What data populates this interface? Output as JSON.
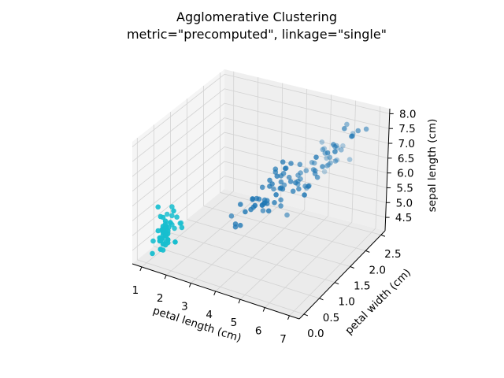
{
  "chart_data": {
    "type": "scatter",
    "projection": "3d",
    "title": [
      "Agglomerative Clustering",
      "metric=\"precomputed\", linkage=\"single\""
    ],
    "xlabel": "petal length (cm)",
    "ylabel": "petal width (cm)",
    "zlabel": "sepal length (cm)",
    "xlim": [
      0.62,
      7.4
    ],
    "ylim": [
      -0.15,
      2.63
    ],
    "zlim": [
      4.05,
      8.17
    ],
    "xticks": [
      "1",
      "2",
      "3",
      "4",
      "5",
      "6",
      "7"
    ],
    "yticks": [
      "0.0",
      "0.5",
      "1.0",
      "1.5",
      "2.0",
      "2.5"
    ],
    "zticks": [
      "4.5",
      "5.0",
      "5.5",
      "6.0",
      "6.5",
      "7.0",
      "7.5",
      "8.0"
    ],
    "grid": true,
    "legend": "none",
    "point_format": [
      "petal length (cm)",
      "petal width (cm)",
      "sepal length (cm)"
    ],
    "series": [
      {
        "color": "#17becf",
        "points": [
          [
            1.4,
            0.2,
            5.1
          ],
          [
            1.4,
            0.2,
            4.9
          ],
          [
            1.3,
            0.2,
            4.7
          ],
          [
            1.5,
            0.2,
            4.6
          ],
          [
            1.4,
            0.2,
            5.0
          ],
          [
            1.7,
            0.4,
            5.4
          ],
          [
            1.4,
            0.3,
            4.6
          ],
          [
            1.5,
            0.2,
            5.0
          ],
          [
            1.4,
            0.2,
            4.4
          ],
          [
            1.5,
            0.1,
            4.9
          ],
          [
            1.5,
            0.2,
            5.4
          ],
          [
            1.6,
            0.2,
            4.8
          ],
          [
            1.4,
            0.1,
            4.8
          ],
          [
            1.1,
            0.1,
            4.3
          ],
          [
            1.2,
            0.2,
            5.8
          ],
          [
            1.5,
            0.4,
            5.7
          ],
          [
            1.3,
            0.4,
            5.4
          ],
          [
            1.4,
            0.3,
            5.1
          ],
          [
            1.7,
            0.3,
            5.7
          ],
          [
            1.5,
            0.3,
            5.1
          ],
          [
            1.7,
            0.2,
            5.4
          ],
          [
            1.5,
            0.4,
            5.1
          ],
          [
            1.0,
            0.2,
            4.6
          ],
          [
            1.7,
            0.5,
            5.1
          ],
          [
            1.9,
            0.2,
            4.8
          ],
          [
            1.6,
            0.2,
            5.0
          ],
          [
            1.6,
            0.4,
            5.0
          ],
          [
            1.5,
            0.2,
            5.2
          ],
          [
            1.4,
            0.2,
            5.2
          ],
          [
            1.6,
            0.2,
            4.7
          ],
          [
            1.6,
            0.2,
            4.8
          ],
          [
            1.5,
            0.4,
            5.4
          ],
          [
            1.5,
            0.1,
            5.2
          ],
          [
            1.4,
            0.2,
            5.5
          ],
          [
            1.5,
            0.2,
            4.9
          ],
          [
            1.2,
            0.2,
            5.0
          ],
          [
            1.3,
            0.2,
            5.5
          ],
          [
            1.4,
            0.1,
            4.9
          ],
          [
            1.3,
            0.2,
            4.4
          ],
          [
            1.5,
            0.2,
            5.1
          ],
          [
            1.3,
            0.3,
            5.0
          ],
          [
            1.3,
            0.3,
            4.5
          ],
          [
            1.3,
            0.2,
            4.4
          ],
          [
            1.6,
            0.6,
            5.0
          ],
          [
            1.9,
            0.4,
            5.1
          ],
          [
            1.4,
            0.3,
            4.8
          ],
          [
            1.6,
            0.2,
            5.1
          ],
          [
            1.4,
            0.2,
            4.6
          ],
          [
            1.5,
            0.2,
            5.3
          ],
          [
            1.4,
            0.2,
            5.0
          ]
        ]
      },
      {
        "color": "#1f77b4",
        "points": [
          [
            4.7,
            1.4,
            7.0
          ],
          [
            4.5,
            1.5,
            6.4
          ],
          [
            4.9,
            1.5,
            6.9
          ],
          [
            4.0,
            1.3,
            5.5
          ],
          [
            4.6,
            1.5,
            6.5
          ],
          [
            4.5,
            1.3,
            5.7
          ],
          [
            4.7,
            1.6,
            6.3
          ],
          [
            3.3,
            1.0,
            4.9
          ],
          [
            4.6,
            1.3,
            6.6
          ],
          [
            3.9,
            1.4,
            5.2
          ],
          [
            3.5,
            1.0,
            5.0
          ],
          [
            4.2,
            1.5,
            5.9
          ],
          [
            4.0,
            1.0,
            6.0
          ],
          [
            4.7,
            1.4,
            6.1
          ],
          [
            3.6,
            1.3,
            5.6
          ],
          [
            4.4,
            1.4,
            6.7
          ],
          [
            4.5,
            1.5,
            5.6
          ],
          [
            4.1,
            1.0,
            5.8
          ],
          [
            4.5,
            1.5,
            6.2
          ],
          [
            3.9,
            1.1,
            5.6
          ],
          [
            4.8,
            1.8,
            5.9
          ],
          [
            4.0,
            1.3,
            6.1
          ],
          [
            4.9,
            1.5,
            6.3
          ],
          [
            4.7,
            1.2,
            6.1
          ],
          [
            4.3,
            1.3,
            6.4
          ],
          [
            4.4,
            1.4,
            6.6
          ],
          [
            4.8,
            1.4,
            6.8
          ],
          [
            5.0,
            1.7,
            6.7
          ],
          [
            4.5,
            1.5,
            6.0
          ],
          [
            3.5,
            1.0,
            5.7
          ],
          [
            3.8,
            1.1,
            5.5
          ],
          [
            3.7,
            1.0,
            5.5
          ],
          [
            3.9,
            1.2,
            5.8
          ],
          [
            5.1,
            1.6,
            6.0
          ],
          [
            4.5,
            1.5,
            5.4
          ],
          [
            4.5,
            1.6,
            6.0
          ],
          [
            4.7,
            1.5,
            6.7
          ],
          [
            4.4,
            1.3,
            6.3
          ],
          [
            4.1,
            1.3,
            5.6
          ],
          [
            4.0,
            1.3,
            5.5
          ],
          [
            4.4,
            1.2,
            5.5
          ],
          [
            4.6,
            1.4,
            6.1
          ],
          [
            4.0,
            1.2,
            5.8
          ],
          [
            3.3,
            1.0,
            5.0
          ],
          [
            4.2,
            1.3,
            5.6
          ],
          [
            4.2,
            1.2,
            5.7
          ],
          [
            4.2,
            1.3,
            5.7
          ],
          [
            4.3,
            1.3,
            6.2
          ],
          [
            3.0,
            1.1,
            5.1
          ],
          [
            4.1,
            1.3,
            5.7
          ],
          [
            6.0,
            2.5,
            6.3
          ],
          [
            5.1,
            1.9,
            5.8
          ],
          [
            5.9,
            2.1,
            7.1
          ],
          [
            5.6,
            1.8,
            6.3
          ],
          [
            5.8,
            2.2,
            6.5
          ],
          [
            6.6,
            2.1,
            7.6
          ],
          [
            4.5,
            1.7,
            4.9
          ],
          [
            6.3,
            1.8,
            7.3
          ],
          [
            5.8,
            1.8,
            6.7
          ],
          [
            6.1,
            2.5,
            7.2
          ],
          [
            5.1,
            2.0,
            6.5
          ],
          [
            5.3,
            1.9,
            6.4
          ],
          [
            5.5,
            2.1,
            6.8
          ],
          [
            5.0,
            2.0,
            5.7
          ],
          [
            5.1,
            2.4,
            5.8
          ],
          [
            5.3,
            2.3,
            6.4
          ],
          [
            5.5,
            1.8,
            6.5
          ],
          [
            6.7,
            2.2,
            7.7
          ],
          [
            6.9,
            2.3,
            7.7
          ],
          [
            5.0,
            1.5,
            6.0
          ],
          [
            5.7,
            2.3,
            6.9
          ],
          [
            4.9,
            2.0,
            5.6
          ],
          [
            6.7,
            2.0,
            7.7
          ],
          [
            4.9,
            1.8,
            6.3
          ],
          [
            5.7,
            2.1,
            6.7
          ],
          [
            6.0,
            1.8,
            7.2
          ],
          [
            4.8,
            1.8,
            6.2
          ],
          [
            4.9,
            1.8,
            6.1
          ],
          [
            5.6,
            2.1,
            6.4
          ],
          [
            5.8,
            1.6,
            7.2
          ],
          [
            6.1,
            1.9,
            7.4
          ],
          [
            6.4,
            2.0,
            7.9
          ],
          [
            5.6,
            2.2,
            6.4
          ],
          [
            5.1,
            1.5,
            6.3
          ],
          [
            5.6,
            1.4,
            6.1
          ],
          [
            6.1,
            2.3,
            7.7
          ],
          [
            5.6,
            2.4,
            6.3
          ],
          [
            5.5,
            1.8,
            6.4
          ],
          [
            4.8,
            1.8,
            6.0
          ],
          [
            5.4,
            2.1,
            6.9
          ],
          [
            5.6,
            2.4,
            6.7
          ],
          [
            5.1,
            2.3,
            6.9
          ],
          [
            5.1,
            1.9,
            5.8
          ],
          [
            5.9,
            2.3,
            6.8
          ],
          [
            5.7,
            2.5,
            6.7
          ],
          [
            5.2,
            2.3,
            6.7
          ],
          [
            5.0,
            1.9,
            6.3
          ],
          [
            5.2,
            2.0,
            6.5
          ],
          [
            5.4,
            2.3,
            6.2
          ],
          [
            5.1,
            1.8,
            5.9
          ]
        ]
      }
    ],
    "pane_colors": {
      "left": "#f5f5f5",
      "back": "#efefef",
      "floor": "#ebebeb"
    },
    "grid_color": "#d3d3d3"
  }
}
